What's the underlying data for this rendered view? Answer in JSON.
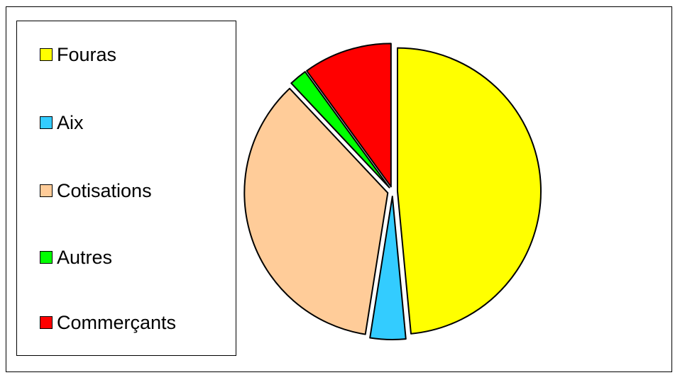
{
  "chart_data": {
    "type": "pie",
    "title": "",
    "categories": [
      "Fouras",
      "Aix",
      "Cotisations",
      "Autres",
      "Commerçants"
    ],
    "values": [
      48.5,
      4.0,
      35.5,
      2.0,
      10.0
    ],
    "colors": [
      "#FFFF00",
      "#33CCFF",
      "#FFCC99",
      "#00FF00",
      "#FF0000"
    ],
    "exploded": true,
    "start_angle_deg": 0,
    "direction": "clockwise",
    "legend_position": "left"
  }
}
